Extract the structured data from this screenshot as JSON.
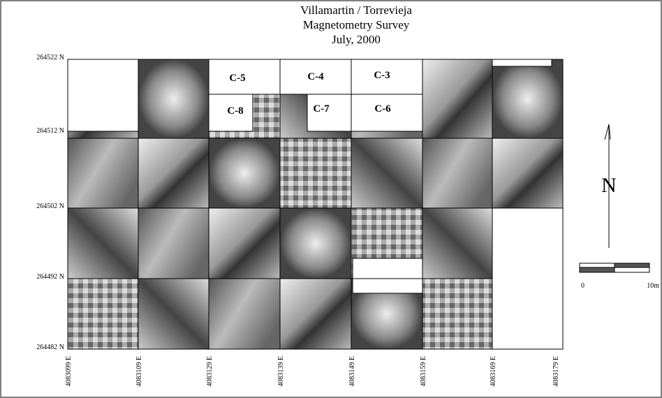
{
  "header": {
    "title_lines": [
      "Villamartin / Torrevieja",
      "Magnetometry Survey",
      "July, 2000"
    ]
  },
  "northings": [
    "264522 N",
    "264512 N",
    "264502 N",
    "264492 N",
    "264482 N"
  ],
  "eastings": [
    "4083099 E",
    "4083109 E",
    "4083129 E",
    "4083139 E",
    "4083149 E",
    "4083159 E",
    "4083169 E",
    "4083179 E"
  ],
  "grid_labels": [
    "C-5",
    "C-4",
    "C-3",
    "C-8",
    "C-7",
    "C-6"
  ],
  "north_arrow": {
    "label": "N"
  },
  "scale_bar": {
    "start": "0",
    "end": "10m"
  }
}
